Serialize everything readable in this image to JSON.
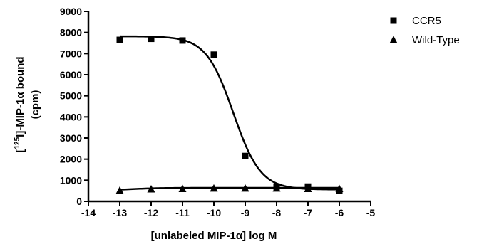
{
  "chart_data": {
    "type": "scatter",
    "title": "",
    "xlabel": "[unlabeled MIP-1α] log M",
    "ylabel_line1_prefix": "[",
    "ylabel_superscript": "125",
    "ylabel_line1_suffix": "I]-MIP-1α bound",
    "ylabel_line2": "(cpm)",
    "xlim": [
      -14,
      -5
    ],
    "ylim": [
      0,
      9000
    ],
    "x_ticks": [
      -14,
      -13,
      -12,
      -11,
      -10,
      -9,
      -8,
      -7,
      -6,
      -5
    ],
    "y_ticks": [
      0,
      1000,
      2000,
      3000,
      4000,
      5000,
      6000,
      7000,
      8000,
      9000
    ],
    "legend_position": "top-right",
    "grid": false,
    "series": [
      {
        "name": "CCR5",
        "marker": "square",
        "x": [
          -13,
          -12,
          -11,
          -10,
          -9,
          -8,
          -7,
          -6
        ],
        "y": [
          7650,
          7700,
          7620,
          6950,
          2150,
          700,
          700,
          500
        ],
        "fit": {
          "model": "sigmoid",
          "top": 7820,
          "bottom": 560,
          "logEC50": -9.38,
          "hill": 1.0
        }
      },
      {
        "name": "Wild-Type",
        "marker": "triangle",
        "x": [
          -13,
          -12,
          -11,
          -10,
          -9,
          -8,
          -7,
          -6
        ],
        "y": [
          520,
          580,
          600,
          620,
          620,
          620,
          600,
          600
        ],
        "fit": {
          "model": "sigmoid",
          "top": 520,
          "bottom": 640,
          "logEC50": -12.6,
          "hill": 1.0
        }
      }
    ],
    "colors": {
      "marks": "#000000",
      "background": "#ffffff"
    }
  }
}
